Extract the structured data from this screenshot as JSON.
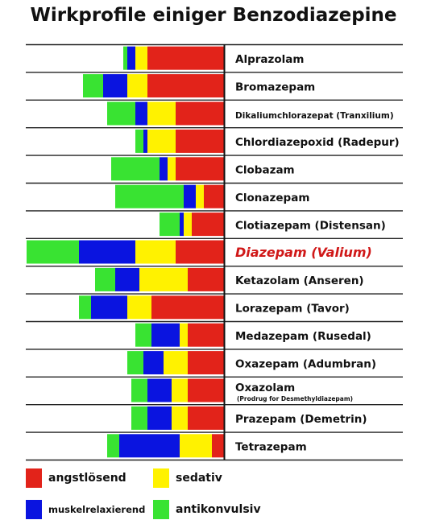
{
  "chart_data": {
    "type": "bar",
    "orientation": "horizontal",
    "stacked": true,
    "title": "Wirkprofile einiger Benzodiazepine",
    "categories": [
      {
        "name": "Alprazolam"
      },
      {
        "name": "Bromazepam"
      },
      {
        "name": "Dikaliumchlorazepat (Tranxilium)"
      },
      {
        "name": "Chlordiazepoxid (Radepur)"
      },
      {
        "name": "Clobazam"
      },
      {
        "name": "Clonazepam"
      },
      {
        "name": "Clotiazepam (Distensan)"
      },
      {
        "name": "Diazepam (Valium)",
        "highlight": true
      },
      {
        "name": "Ketazolam (Anseren)"
      },
      {
        "name": "Lorazepam (Tavor)"
      },
      {
        "name": "Medazepam (Rusedal)"
      },
      {
        "name": "Oxazepam (Adumbran)"
      },
      {
        "name": "Oxazolam",
        "subtitle": "(Prodrug for Desmethyldiazepam)"
      },
      {
        "name": "Prazepam (Demetrin)"
      },
      {
        "name": "Tetrazepam"
      }
    ],
    "series": [
      {
        "name": "angstlösend",
        "color": "#e2231a",
        "values": [
          9.5,
          9.5,
          6.0,
          6.0,
          6.0,
          2.5,
          4.0,
          6.0,
          4.5,
          9.0,
          4.5,
          4.5,
          4.5,
          4.5,
          1.5
        ]
      },
      {
        "name": "sedativ",
        "color": "#fff200",
        "values": [
          1.5,
          2.5,
          3.5,
          3.5,
          1.0,
          1.0,
          1.0,
          5.0,
          6.0,
          3.0,
          1.0,
          3.0,
          2.0,
          2.0,
          4.0
        ]
      },
      {
        "name": "muskelrelaxierend",
        "color": "#0a14e0",
        "values": [
          1.0,
          3.0,
          1.5,
          0.5,
          1.0,
          1.5,
          0.5,
          7.0,
          3.0,
          4.5,
          3.5,
          2.5,
          3.0,
          3.0,
          7.5
        ]
      },
      {
        "name": "antikonvulsiv",
        "color": "#39e332",
        "values": [
          0.5,
          2.5,
          3.5,
          1.0,
          6.0,
          8.5,
          2.5,
          6.5,
          2.5,
          1.5,
          2.0,
          2.0,
          2.0,
          2.0,
          1.5
        ]
      }
    ],
    "legend": "bottom"
  }
}
